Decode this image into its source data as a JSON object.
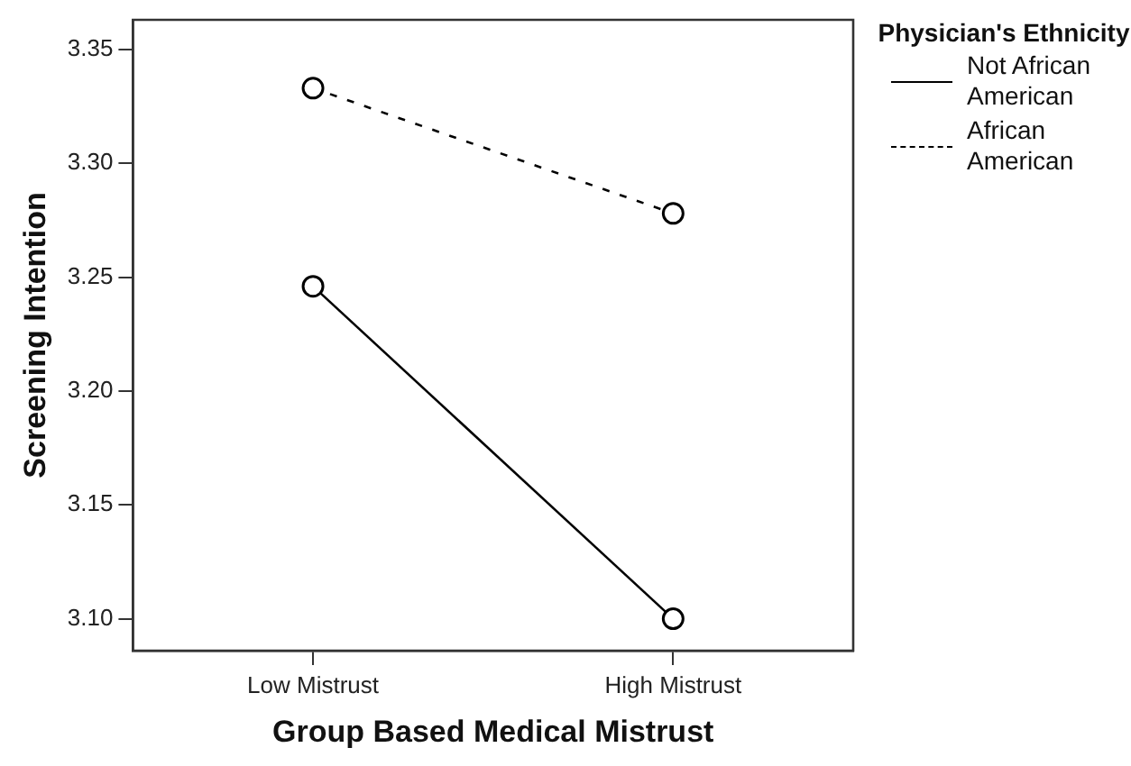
{
  "chart_data": {
    "type": "line",
    "xlabel": "Group Based Medical Mistrust",
    "ylabel": "Screening Intention",
    "legend_title": "Physician's Ethnicity",
    "categories": [
      "Low Mistrust",
      "High Mistrust"
    ],
    "series": [
      {
        "name": "Not African American",
        "color": "#000000",
        "values": [
          3.246,
          3.1
        ],
        "line_style": "solid"
      },
      {
        "name": "African American",
        "color": "#000000",
        "values": [
          3.333,
          3.278
        ],
        "line_style": "dashed"
      }
    ],
    "ylim": [
      3.086,
      3.363
    ],
    "yticks": [
      {
        "value": 3.1,
        "label": "3.10"
      },
      {
        "value": 3.15,
        "label": "3.15"
      },
      {
        "value": 3.2,
        "label": "3.20"
      },
      {
        "value": 3.25,
        "label": "3.25"
      },
      {
        "value": 3.3,
        "label": "3.30"
      },
      {
        "value": 3.35,
        "label": "3.35"
      }
    ],
    "marker": "circle",
    "legend": "top right",
    "grid": false
  }
}
